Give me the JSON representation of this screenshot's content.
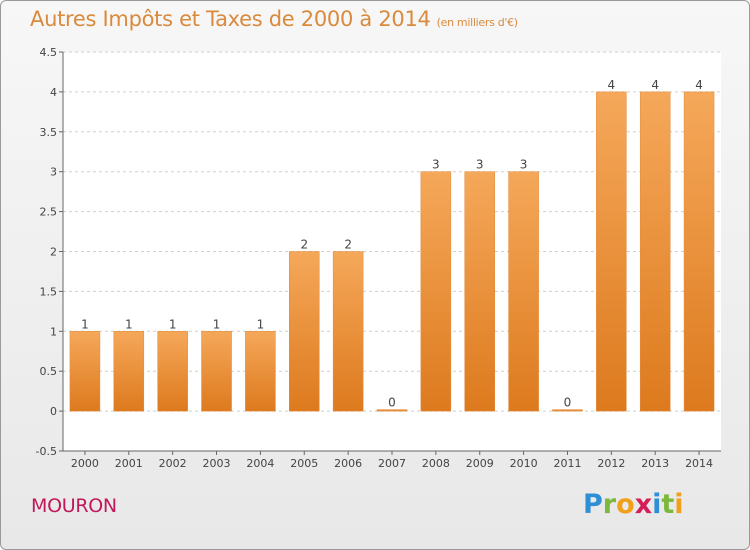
{
  "title": "Autres Impôts et Taxes de 2000 à 2014",
  "unit_note": "(en milliers d'€)",
  "place": "MOURON",
  "logo": {
    "letters": [
      "P",
      "r",
      "o",
      "x",
      "i",
      "t",
      "i"
    ],
    "colors": [
      "#2d8fd5",
      "#7cb83a",
      "#f0a01a",
      "#d21f57",
      "#2d8fd5",
      "#7cb83a",
      "#f0a01a"
    ]
  },
  "colors": {
    "bar_top": "#f5a85a",
    "bar_bottom": "#dd7a1e",
    "title": "#d98a3d",
    "place": "#c2185b"
  },
  "chart_data": {
    "type": "bar",
    "title": "Autres Impôts et Taxes de 2000 à 2014",
    "ylabel": "",
    "xlabel": "",
    "categories": [
      "2000",
      "2001",
      "2002",
      "2003",
      "2004",
      "2005",
      "2006",
      "2007",
      "2008",
      "2009",
      "2010",
      "2011",
      "2012",
      "2013",
      "2014"
    ],
    "values": [
      1,
      1,
      1,
      1,
      1,
      2,
      2,
      0,
      3,
      3,
      3,
      0,
      4,
      4,
      4
    ],
    "data_labels": [
      "1",
      "1",
      "1",
      "1",
      "1",
      "2",
      "2",
      "0",
      "3",
      "3",
      "3",
      "0",
      "4",
      "4",
      "4"
    ],
    "ylim": [
      -0.5,
      4.5
    ],
    "yticks": [
      -0.5,
      0,
      0.5,
      1,
      1.5,
      2,
      2.5,
      3,
      3.5,
      4,
      4.5
    ],
    "ytick_labels": [
      "-0.5",
      "0",
      "0.5",
      "1",
      "1.5",
      "2",
      "2.5",
      "3",
      "3.5",
      "4",
      "4.5"
    ],
    "grid": "horizontal dashed",
    "legend": "none"
  }
}
